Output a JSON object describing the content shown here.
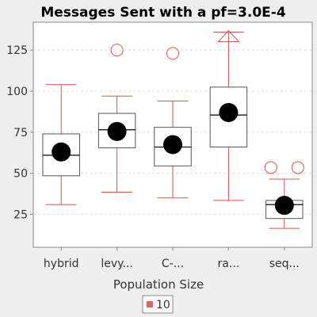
{
  "chart_data": {
    "type": "boxplot",
    "title": "Messages Sent  with a pf=3.0E-4",
    "xlabel": "Population Size",
    "ylabel": "",
    "ylim": [
      5,
      142
    ],
    "yticks": [
      25,
      50,
      75,
      100,
      125
    ],
    "grid": true,
    "legend": {
      "placement": "bottom-center",
      "entries": [
        "10"
      ]
    },
    "colors": {
      "whisker": "#d9534f",
      "box": "#555555",
      "mean": "#000000",
      "outlier": "#d9534f",
      "grid": "#dddddd"
    },
    "categories": [
      "hybrid",
      "levy...",
      "C-...",
      "ra...",
      "seq..."
    ],
    "series": [
      {
        "name": "10",
        "boxes": [
          {
            "min": 31,
            "q1": 48.5,
            "median": 61,
            "q3": 74,
            "max": 104,
            "mean": 63,
            "outliers": []
          },
          {
            "min": 38.5,
            "q1": 65.5,
            "median": 76.5,
            "q3": 86.5,
            "max": 97,
            "mean": 75.5,
            "outliers": [
              125
            ]
          },
          {
            "min": 35,
            "q1": 54.5,
            "median": 66,
            "q3": 78,
            "max": 94,
            "mean": 67.5,
            "outliers": [
              123
            ]
          },
          {
            "min": 33.5,
            "q1": 66,
            "median": 85.5,
            "q3": 102.5,
            "max": 136,
            "mean": 87,
            "outliers": [],
            "far_outliers": [
              133
            ]
          },
          {
            "min": 16.5,
            "q1": 22.5,
            "median": 31,
            "q3": 33.5,
            "max": 46.5,
            "mean": 30.5,
            "outliers": [
              53.5,
              53.5
            ]
          }
        ]
      }
    ]
  }
}
